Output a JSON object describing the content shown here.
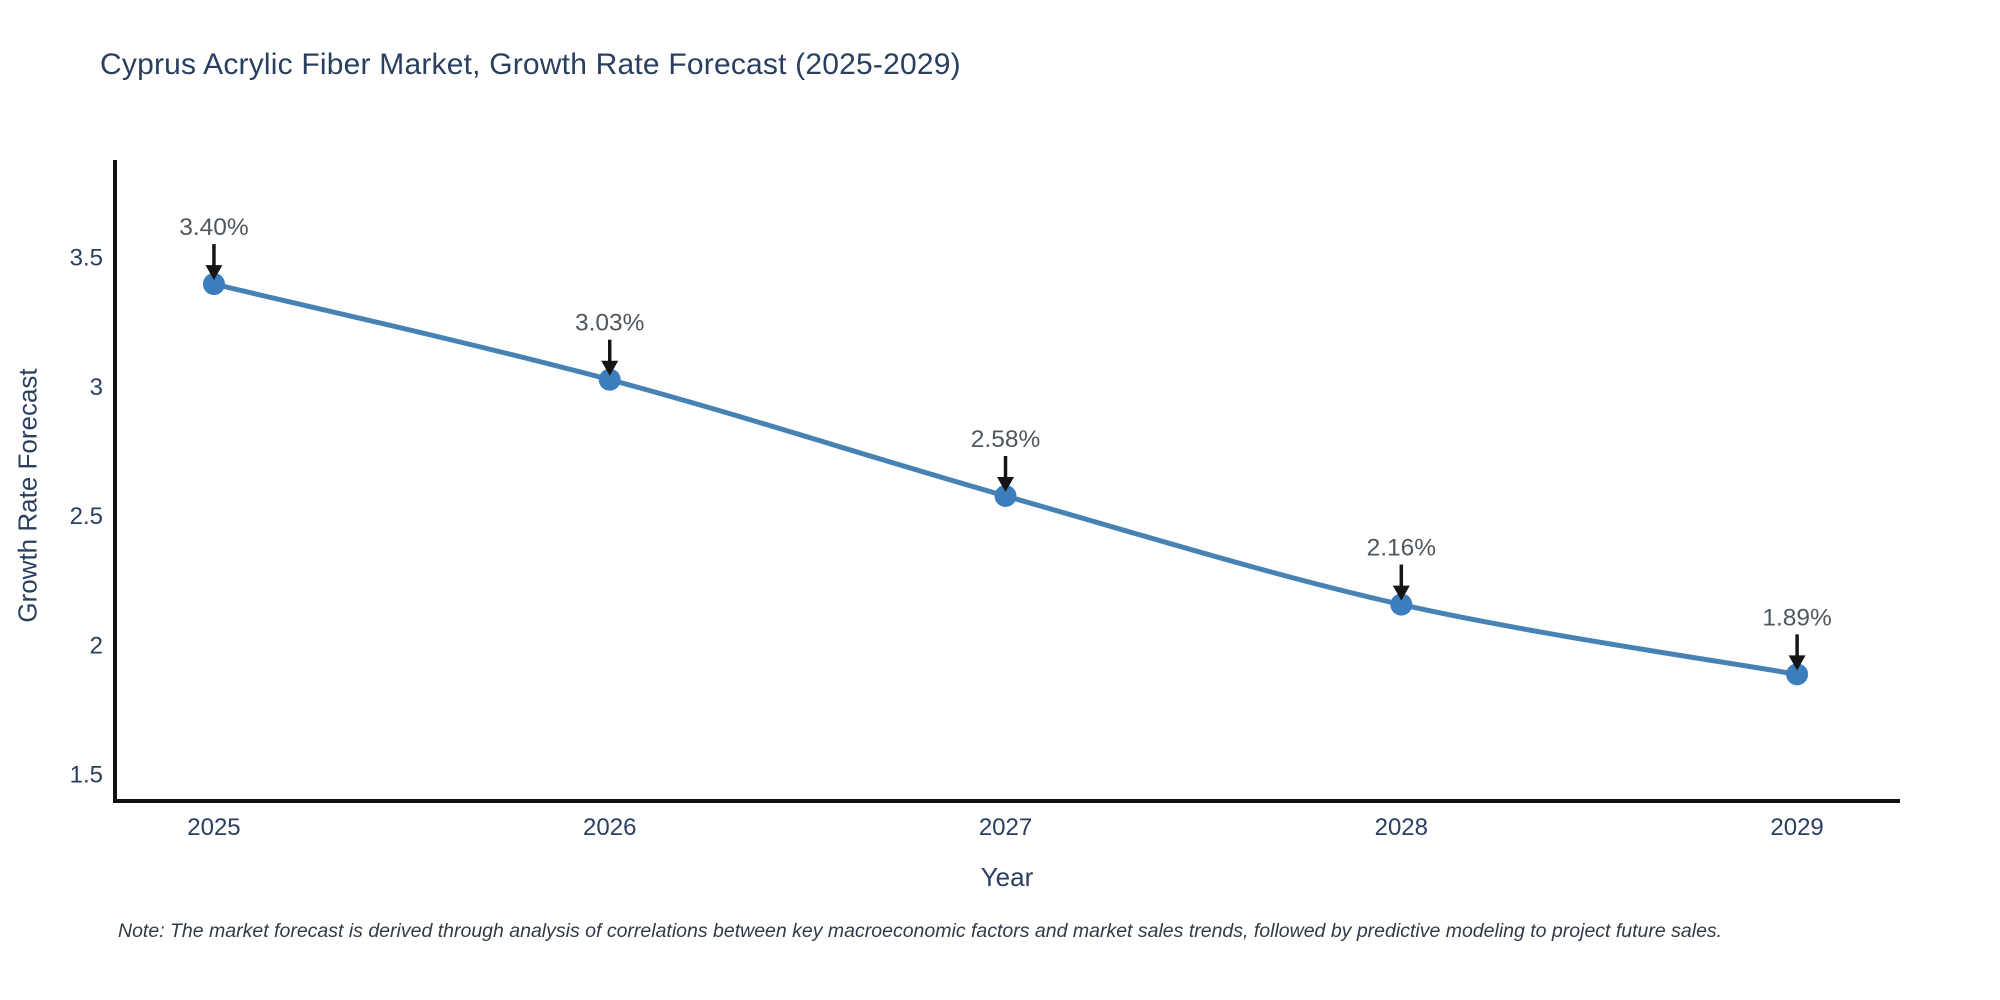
{
  "chart_data": {
    "type": "line",
    "title": "Cyprus Acrylic Fiber Market, Growth Rate Forecast (2025-2029)",
    "xlabel": "Year",
    "ylabel": "Growth Rate Forecast",
    "x": [
      2025,
      2026,
      2027,
      2028,
      2029
    ],
    "x_tick_labels": [
      "2025",
      "2026",
      "2027",
      "2028",
      "2029"
    ],
    "series": [
      {
        "name": "Growth Rate Forecast",
        "values": [
          3.4,
          3.03,
          2.58,
          2.16,
          1.89
        ]
      }
    ],
    "point_labels": [
      "3.40%",
      "3.03%",
      "2.58%",
      "2.16%",
      "1.89%"
    ],
    "yticks": [
      1.5,
      2.0,
      2.5,
      3.0,
      3.5
    ],
    "ytick_labels": [
      "1.5",
      "2",
      "2.5",
      "3",
      "3.5"
    ],
    "xlim": [
      2024.75,
      2029.26
    ],
    "ylim": [
      1.4,
      3.88
    ],
    "grid": false,
    "legend_position": "none",
    "line_shape": "spline",
    "note": "Note: The market forecast is derived through analysis of correlations between key macroeconomic factors and market sales trends, followed by predictive modeling to project future sales.",
    "colors": {
      "line": "#4682b4",
      "marker": "#3c7ebd",
      "axis_line": "#111111",
      "tick_label": "#2a3f5f",
      "title": "#2a3f5f",
      "axis_label": "#2a3f5f",
      "annotation_text": "#4f585f",
      "annotation_arrow": "#151515",
      "note_text": "#2f3b47",
      "background": "#ffffff"
    }
  }
}
